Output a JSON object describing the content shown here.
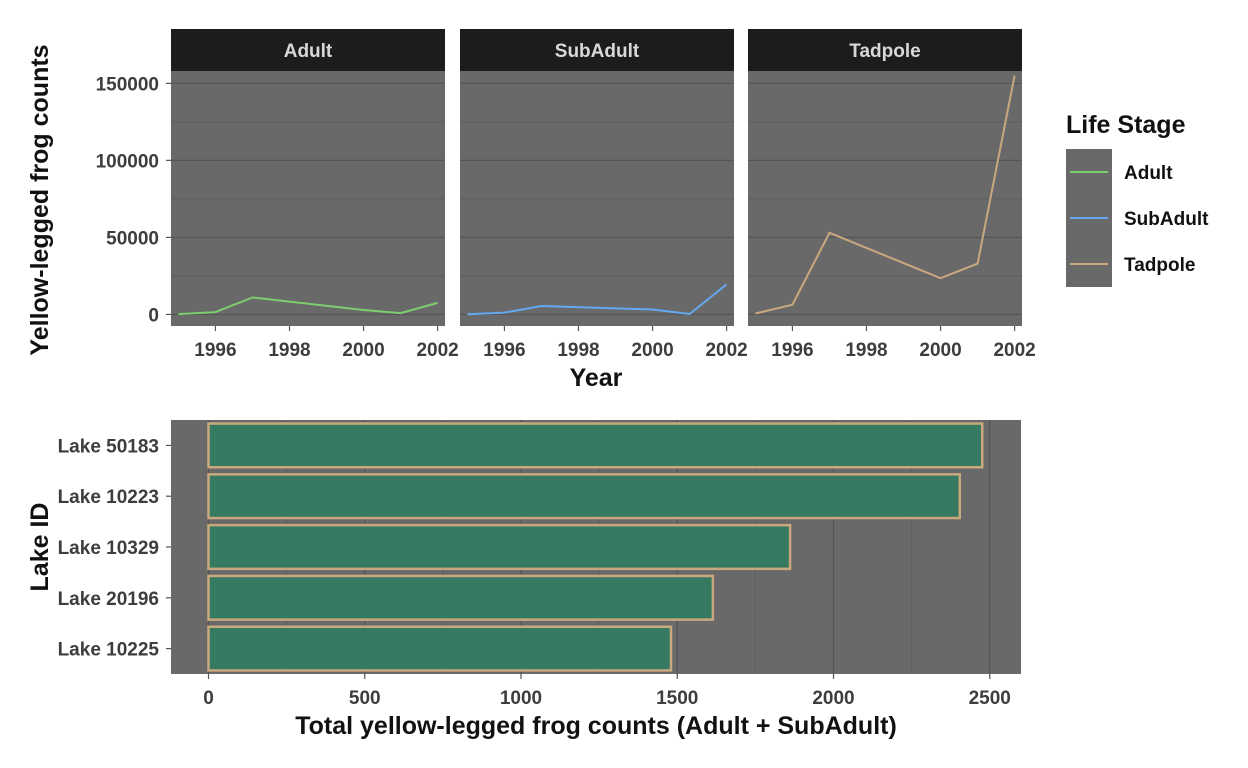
{
  "chart_data": [
    {
      "type": "line",
      "facets": [
        "Adult",
        "SubAdult",
        "Tadpole"
      ],
      "xlabel": "Year",
      "ylabel": "Yellow-legged frog counts",
      "x": [
        1995,
        1996,
        1997,
        2000,
        2001,
        2002
      ],
      "xticks": [
        1996,
        1998,
        2000,
        2002
      ],
      "yticks": [
        0,
        50000,
        100000,
        150000
      ],
      "xlim": [
        1994.8,
        2002.2
      ],
      "ylim": [
        -7500,
        158000
      ],
      "grid": true,
      "legend": {
        "title": "Life Stage",
        "position": "right",
        "entries": [
          "Adult",
          "SubAdult",
          "Tadpole"
        ]
      },
      "series": [
        {
          "name": "Adult",
          "color": "#7ccd6e",
          "values": [
            200,
            1500,
            11000,
            2900,
            900,
            7500
          ]
        },
        {
          "name": "SubAdult",
          "color": "#64a8f0",
          "values": [
            100,
            1200,
            5500,
            3200,
            300,
            19500
          ]
        },
        {
          "name": "Tadpole",
          "color": "#c9a87e",
          "values": [
            600,
            6300,
            53000,
            23500,
            33000,
            155000
          ]
        }
      ]
    },
    {
      "type": "bar",
      "orientation": "horizontal",
      "xlabel": "Total yellow-legged frog counts (Adult + SubAdult)",
      "ylabel": "Lake ID",
      "categories": [
        "Lake 50183",
        "Lake 10223",
        "Lake 10329",
        "Lake 20196",
        "Lake 10225"
      ],
      "values": [
        2476,
        2404,
        1861,
        1614,
        1480
      ],
      "xticks": [
        0,
        500,
        1000,
        1500,
        2000,
        2500
      ],
      "xlim": [
        -120,
        2600
      ],
      "grid": true,
      "bar_fill": "#367a61",
      "bar_outline": "#c9a87e"
    }
  ]
}
